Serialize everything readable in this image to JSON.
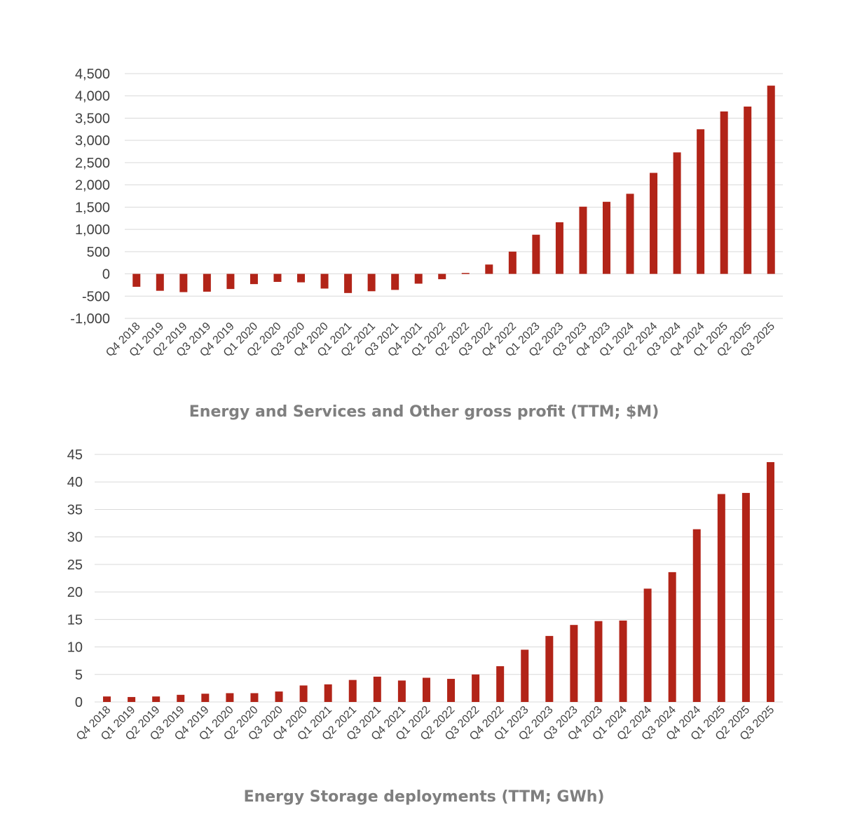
{
  "chart_data": [
    {
      "type": "bar",
      "title": "Energy and Services and Other gross profit (TTM; $M)",
      "xlabel": "",
      "ylabel": "",
      "ylim": [
        -1000,
        4500
      ],
      "yticks": [
        "4,500",
        "4,000",
        "3,500",
        "3,000",
        "2,500",
        "2,000",
        "1,500",
        "1,000",
        "500",
        "0",
        "-500",
        "-1,000"
      ],
      "ytick_values": [
        4500,
        4000,
        3500,
        3000,
        2500,
        2000,
        1500,
        1000,
        500,
        0,
        -500,
        -1000
      ],
      "grid": true,
      "legend": "none",
      "bar_color": "#b22418",
      "categories": [
        "Q4 2018",
        "Q1 2019",
        "Q2 2019",
        "Q3 2019",
        "Q4 2019",
        "Q1 2020",
        "Q2 2020",
        "Q3 2020",
        "Q4 2020",
        "Q1 2021",
        "Q2 2021",
        "Q3 2021",
        "Q4 2021",
        "Q1 2022",
        "Q2 2022",
        "Q3 2022",
        "Q4 2022",
        "Q1 2023",
        "Q2 2023",
        "Q3 2023",
        "Q4 2023",
        "Q1 2024",
        "Q2 2024",
        "Q3 2024",
        "Q4 2024",
        "Q1 2025",
        "Q2 2025",
        "Q3 2025"
      ],
      "values": [
        -290,
        -380,
        -410,
        -400,
        -340,
        -230,
        -180,
        -190,
        -330,
        -430,
        -390,
        -360,
        -220,
        -120,
        20,
        210,
        500,
        880,
        1160,
        1510,
        1620,
        1800,
        2270,
        2730,
        3250,
        3650,
        3760,
        4230
      ]
    },
    {
      "type": "bar",
      "title": "Energy Storage deployments (TTM; GWh)",
      "xlabel": "",
      "ylabel": "",
      "ylim": [
        0,
        45
      ],
      "yticks": [
        "45",
        "40",
        "35",
        "30",
        "25",
        "20",
        "15",
        "10",
        "5",
        "0"
      ],
      "ytick_values": [
        45,
        40,
        35,
        30,
        25,
        20,
        15,
        10,
        5,
        0
      ],
      "grid": true,
      "legend": "none",
      "bar_color": "#b22418",
      "categories": [
        "Q4 2018",
        "Q1 2019",
        "Q2 2019",
        "Q3 2019",
        "Q4 2019",
        "Q1 2020",
        "Q2 2020",
        "Q3 2020",
        "Q4 2020",
        "Q1 2021",
        "Q2 2021",
        "Q3 2021",
        "Q4 2021",
        "Q1 2022",
        "Q2 2022",
        "Q3 2022",
        "Q4 2022",
        "Q1 2023",
        "Q2 2023",
        "Q3 2023",
        "Q4 2023",
        "Q1 2024",
        "Q2 2024",
        "Q3 2024",
        "Q4 2024",
        "Q1 2025",
        "Q2 2025",
        "Q3 2025"
      ],
      "values": [
        1.0,
        0.9,
        1.0,
        1.3,
        1.5,
        1.6,
        1.6,
        1.9,
        3.0,
        3.2,
        4.0,
        4.6,
        3.9,
        4.4,
        4.2,
        5.0,
        6.5,
        9.5,
        12.0,
        14.0,
        14.7,
        14.8,
        20.6,
        23.6,
        31.4,
        37.8,
        38.0,
        43.6
      ]
    }
  ]
}
